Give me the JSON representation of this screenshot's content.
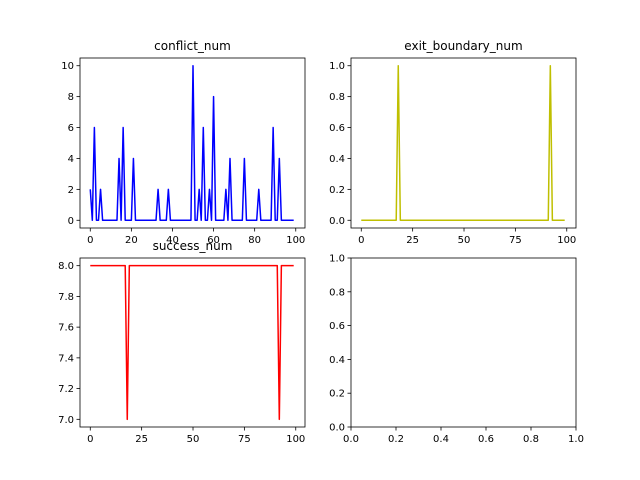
{
  "chart_data": [
    {
      "type": "line",
      "title": "conflict_num",
      "xlabel": "",
      "ylabel": "",
      "xlim": [
        -5,
        104.5
      ],
      "ylim": [
        -0.5,
        10.5
      ],
      "xticks": [
        0,
        20,
        40,
        60,
        80,
        100
      ],
      "yticks": [
        0,
        2,
        4,
        6,
        8,
        10
      ],
      "xtick_labels": [
        "0",
        "20",
        "40",
        "60",
        "80",
        "100"
      ],
      "ytick_labels": [
        "0",
        "2",
        "4",
        "6",
        "8",
        "10"
      ],
      "grid": false,
      "color": "#0000ff",
      "series": [
        {
          "x": [
            0,
            1,
            2,
            3,
            4,
            5,
            6,
            7,
            8,
            9,
            10,
            11,
            12,
            13,
            14,
            15,
            16,
            17,
            18,
            19,
            20,
            21,
            22,
            23,
            24,
            25,
            26,
            27,
            28,
            29,
            30,
            31,
            32,
            33,
            34,
            35,
            36,
            37,
            38,
            39,
            40,
            41,
            42,
            43,
            44,
            45,
            46,
            47,
            48,
            49,
            50,
            51,
            52,
            53,
            54,
            55,
            56,
            57,
            58,
            59,
            60,
            61,
            62,
            63,
            64,
            65,
            66,
            67,
            68,
            69,
            70,
            71,
            72,
            73,
            74,
            75,
            76,
            77,
            78,
            79,
            80,
            81,
            82,
            83,
            84,
            85,
            86,
            87,
            88,
            89,
            90,
            91,
            92,
            93,
            94,
            95,
            96,
            97,
            98,
            99
          ],
          "values": [
            2,
            0,
            6,
            0,
            0,
            2,
            0,
            0,
            0,
            0,
            0,
            0,
            0,
            0,
            4,
            0,
            6,
            0,
            0,
            0,
            0,
            4,
            0,
            0,
            0,
            0,
            0,
            0,
            0,
            0,
            0,
            0,
            0,
            2,
            0,
            0,
            0,
            0,
            2,
            0,
            0,
            0,
            0,
            0,
            0,
            0,
            0,
            0,
            0,
            0,
            10,
            0,
            0,
            2,
            0,
            6,
            0,
            0,
            2,
            0,
            8,
            0,
            0,
            0,
            0,
            0,
            2,
            0,
            4,
            0,
            0,
            0,
            0,
            0,
            0,
            4,
            0,
            0,
            0,
            0,
            0,
            0,
            2,
            0,
            0,
            0,
            0,
            0,
            0,
            6,
            0,
            0,
            4,
            0,
            0,
            0,
            0,
            0,
            0,
            0
          ]
        }
      ]
    },
    {
      "type": "line",
      "title": "exit_boundary_num",
      "xlabel": "",
      "ylabel": "",
      "xlim": [
        -5,
        104.5
      ],
      "ylim": [
        -0.05,
        1.05
      ],
      "xticks": [
        0,
        25,
        50,
        75,
        100
      ],
      "yticks": [
        0,
        0.2,
        0.4,
        0.6,
        0.8,
        1.0
      ],
      "xtick_labels": [
        "0",
        "25",
        "50",
        "75",
        "100"
      ],
      "ytick_labels": [
        "0.0",
        "0.2",
        "0.4",
        "0.6",
        "0.8",
        "1.0"
      ],
      "grid": false,
      "color": "#bfbf00",
      "series": [
        {
          "x": [
            0,
            17,
            18,
            19,
            91,
            92,
            93,
            99
          ],
          "values": [
            0,
            0,
            1,
            0,
            0,
            1,
            0,
            0
          ]
        }
      ]
    },
    {
      "type": "line",
      "title": "success_num",
      "xlabel": "",
      "ylabel": "",
      "xlim": [
        -5,
        104.5
      ],
      "ylim": [
        6.95,
        8.05
      ],
      "xticks": [
        0,
        25,
        50,
        75,
        100
      ],
      "yticks": [
        7.0,
        7.2,
        7.4,
        7.6,
        7.8,
        8.0
      ],
      "xtick_labels": [
        "0",
        "25",
        "50",
        "75",
        "100"
      ],
      "ytick_labels": [
        "7.0",
        "7.2",
        "7.4",
        "7.6",
        "7.8",
        "8.0"
      ],
      "grid": false,
      "color": "#ff0000",
      "series": [
        {
          "x": [
            0,
            17,
            18,
            19,
            91,
            92,
            93,
            99
          ],
          "values": [
            8,
            8,
            7,
            8,
            8,
            7,
            8,
            8
          ]
        }
      ]
    },
    {
      "type": "line",
      "title": "",
      "xlabel": "",
      "ylabel": "",
      "xlim": [
        0,
        1
      ],
      "ylim": [
        0,
        1
      ],
      "xticks": [
        0,
        0.2,
        0.4,
        0.6,
        0.8,
        1.0
      ],
      "yticks": [
        0,
        0.2,
        0.4,
        0.6,
        0.8,
        1.0
      ],
      "xtick_labels": [
        "0.0",
        "0.2",
        "0.4",
        "0.6",
        "0.8",
        "1.0"
      ],
      "ytick_labels": [
        "0.0",
        "0.2",
        "0.4",
        "0.6",
        "0.8",
        "1.0"
      ],
      "grid": false,
      "color": "#000000",
      "series": []
    }
  ]
}
